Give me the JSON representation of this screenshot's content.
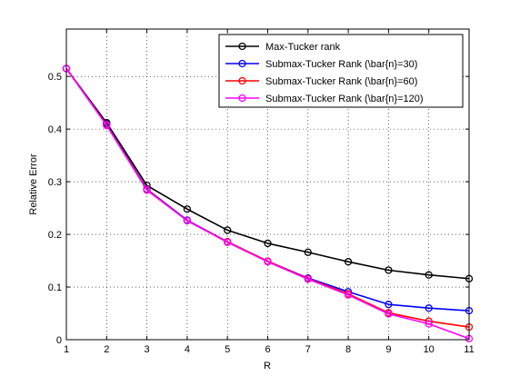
{
  "chart_data": {
    "type": "line",
    "title": "",
    "xlabel": "R",
    "ylabel": "Relative Error",
    "x": [
      1,
      2,
      3,
      4,
      5,
      6,
      7,
      8,
      9,
      10,
      11
    ],
    "xlim": [
      1,
      11
    ],
    "ylim": [
      0,
      0.59
    ],
    "xticks": [
      "1",
      "2",
      "3",
      "4",
      "5",
      "6",
      "7",
      "8",
      "9",
      "10",
      "11"
    ],
    "yticks": [
      {
        "value": 0,
        "label": "0"
      },
      {
        "value": 0.1,
        "label": "0.1"
      },
      {
        "value": 0.2,
        "label": "0.2"
      },
      {
        "value": 0.3,
        "label": "0.3"
      },
      {
        "value": 0.4,
        "label": "0.4"
      },
      {
        "value": 0.5,
        "label": "0.5"
      }
    ],
    "grid": true,
    "grid_style": "dotted",
    "legend_position": "top-right",
    "marker": "open-circle",
    "series": [
      {
        "name": "Max-Tucker rank",
        "color": "#000000",
        "values": [
          0.515,
          0.412,
          0.293,
          0.248,
          0.208,
          0.183,
          0.166,
          0.148,
          0.132,
          0.123,
          0.116
        ]
      },
      {
        "name": "Submax-Tucker Rank (\\bar{n}=30)",
        "color": "#0000ff",
        "values": [
          0.515,
          0.409,
          0.286,
          0.227,
          0.186,
          0.149,
          0.117,
          0.091,
          0.067,
          0.06,
          0.055
        ]
      },
      {
        "name": "Submax-Tucker Rank (\\bar{n}=60)",
        "color": "#ff0000",
        "values": [
          0.515,
          0.408,
          0.285,
          0.226,
          0.186,
          0.149,
          0.116,
          0.087,
          0.051,
          0.035,
          0.024
        ]
      },
      {
        "name": "Submax-Tucker Rank (\\bar{n}=120)",
        "color": "#ff00ff",
        "values": [
          0.515,
          0.407,
          0.284,
          0.226,
          0.185,
          0.148,
          0.115,
          0.085,
          0.049,
          0.03,
          0.002
        ]
      }
    ]
  }
}
